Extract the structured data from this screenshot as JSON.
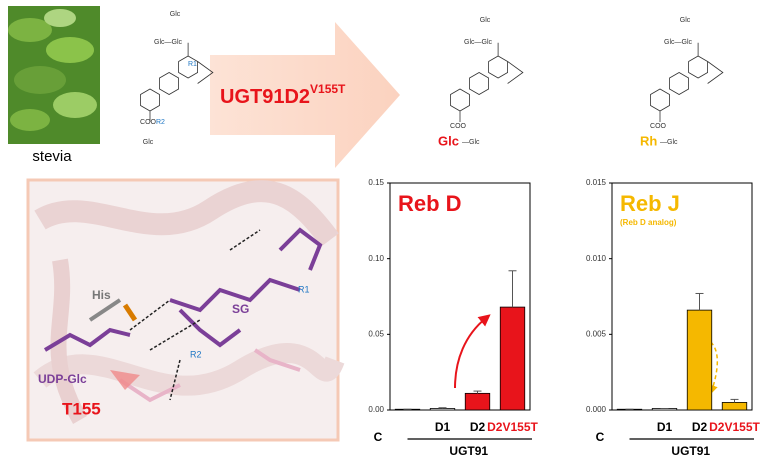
{
  "figure": {
    "photo_label": "stevia",
    "enzyme": {
      "name": "UGT91D2",
      "mutation": "V155T"
    },
    "substrate": {
      "top": "Glc",
      "middle": "Glc—Glc",
      "r1": "R1",
      "ester": "COO",
      "r2": "R2",
      "bottom": "Glc"
    },
    "products": [
      {
        "top": "Glc",
        "middle": "Glc—Glc",
        "ester": "COO",
        "sugar": "Glc",
        "bottom": "—Glc"
      },
      {
        "top": "Glc",
        "middle": "Glc—Glc",
        "ester": "COO",
        "sugar": "Rh",
        "bottom": "—Glc"
      }
    ],
    "structure": {
      "his": "His",
      "sg": "SG",
      "r1": "R1",
      "r2": "R2",
      "donor": "UDP-Glc",
      "residue": "T155"
    }
  },
  "chart_data": [
    {
      "type": "bar",
      "title": "Reb D",
      "title_color": "#e8141b",
      "categories": [
        "C",
        "D1",
        "D2",
        "D2V155T"
      ],
      "category_label_colors": [
        "#000000",
        "#000000",
        "#000000",
        "#e8141b"
      ],
      "group_label": "UGT91",
      "values": [
        0.0005,
        0.001,
        0.011,
        0.068
      ],
      "errors": [
        0,
        0.0005,
        0.0015,
        0.024
      ],
      "colors": [
        "#ffffff",
        "#ffffff",
        "#e8141b",
        "#e8141b"
      ],
      "ylim": [
        0,
        0.15
      ],
      "yticks": [
        {
          "value": 0,
          "label": "0.00"
        },
        {
          "value": 0.05,
          "label": "0.05"
        },
        {
          "value": 0.1,
          "label": "0.10"
        },
        {
          "value": 0.15,
          "label": "0.15"
        }
      ]
    },
    {
      "type": "bar",
      "title": "Reb J",
      "subtitle": "(Reb D analog)",
      "title_color": "#f5b800",
      "categories": [
        "C",
        "D1",
        "D2",
        "D2V155T"
      ],
      "category_label_colors": [
        "#000000",
        "#000000",
        "#000000",
        "#e8141b"
      ],
      "group_label": "UGT91",
      "values": [
        5e-05,
        0.0001,
        0.0066,
        0.0005
      ],
      "errors": [
        0,
        0,
        0.0011,
        0.0002
      ],
      "colors": [
        "#ffffff",
        "#ffffff",
        "#f5b800",
        "#f5b800"
      ],
      "ylim": [
        0,
        0.015
      ],
      "yticks": [
        {
          "value": 0,
          "label": "0.000"
        },
        {
          "value": 0.005,
          "label": "0.005"
        },
        {
          "value": 0.01,
          "label": "0.010"
        },
        {
          "value": 0.015,
          "label": "0.015"
        }
      ]
    }
  ]
}
